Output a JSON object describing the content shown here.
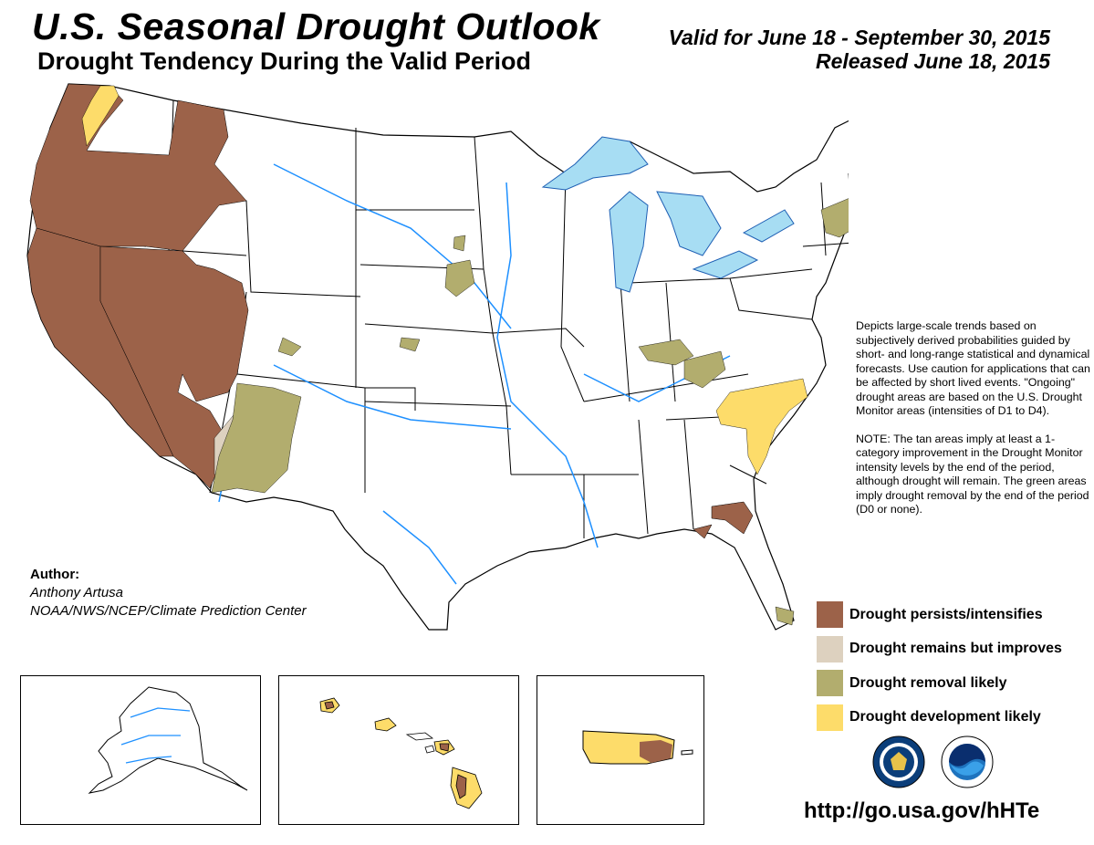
{
  "header": {
    "title": "U.S. Seasonal Drought Outlook",
    "subtitle": "Drought Tendency During the Valid Period",
    "valid_period": "Valid for June 18 - September 30, 2015",
    "released": "Released June 18, 2015"
  },
  "description": {
    "paragraph1": "Depicts large-scale trends based on subjectively derived probabilities guided by short- and long-range statistical and dynamical forecasts. Use caution for applications that can be affected by short lived events. \"Ongoing\" drought areas are based on the U.S. Drought Monitor areas (intensities of D1 to D4).",
    "paragraph2": "NOTE: The tan areas imply at least a 1-category improvement in the Drought Monitor intensity levels by the end of the period, although drought will remain. The green areas imply drought removal by the end of the period (D0 or none)."
  },
  "author": {
    "label": "Author:",
    "name": "Anthony Artusa",
    "affiliation": "NOAA/NWS/NCEP/Climate Prediction Center"
  },
  "legend": [
    {
      "label": "Drought persists/intensifies",
      "color": "#9c6249"
    },
    {
      "label": "Drought remains but improves",
      "color": "#ddd1bf"
    },
    {
      "label": "Drought removal likely",
      "color": "#b2ad6e"
    },
    {
      "label": "Drought development likely",
      "color": "#fddc6a"
    }
  ],
  "colors": {
    "water": "#a7ddf3",
    "rivers": "#1e90ff",
    "borders": "#000000"
  },
  "logos": [
    "noaa-nws-seal-icon",
    "noaa-logo-icon"
  ],
  "url": "http://go.usa.gov/hHTe"
}
